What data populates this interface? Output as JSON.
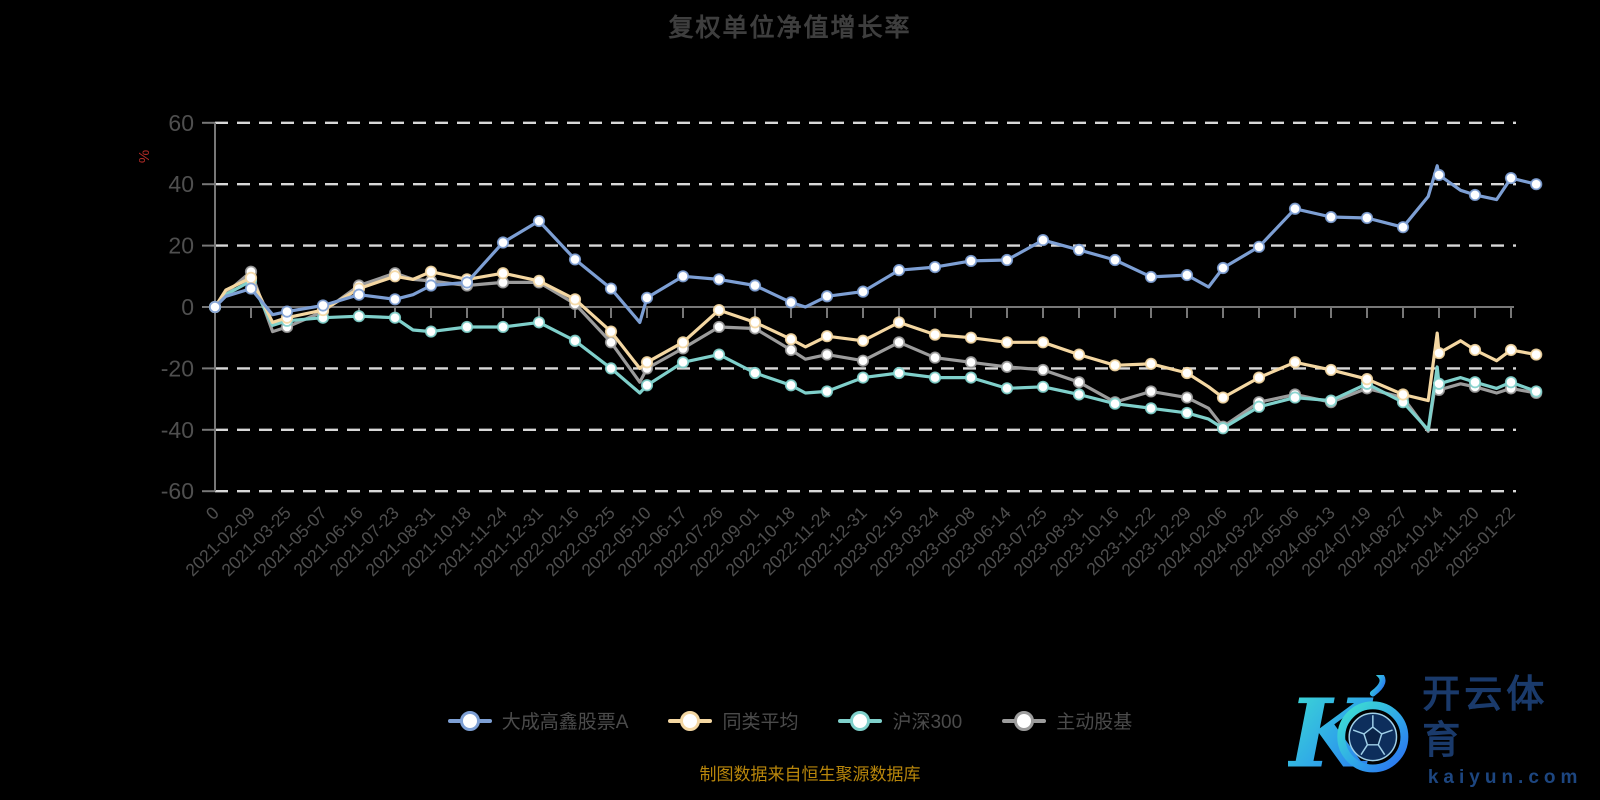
{
  "title": "复权单位净值增长率",
  "y_axis_unit": "%",
  "source_note": "制图数据来自恒生聚源数据库",
  "watermark": {
    "cn": "开云体育",
    "domain": "kaiyun.com"
  },
  "colors": {
    "background": "#000000",
    "title_text": "#3e3e3e",
    "axis_line": "#777777",
    "gridline": "#d8d8d8",
    "tick_label": "#4f4f4f",
    "unit_label_red": "#b32b27",
    "source_orange": "#b8860b",
    "watermark_navy": "#1a3a6b"
  },
  "chart_data": {
    "type": "line",
    "title": "复权单位净值增长率",
    "ylabel": "%",
    "ylim": [
      -60,
      60
    ],
    "yticks": [
      60,
      40,
      20,
      0,
      -20,
      -40,
      -60
    ],
    "grid": "horizontal dashed lines, solid zero axis",
    "legend_position": "bottom",
    "x_tick_labels": [
      "0",
      "2021-02-09",
      "2021-03-25",
      "2021-05-07",
      "2021-06-16",
      "2021-07-23",
      "2021-08-31",
      "2021-10-18",
      "2021-11-24",
      "2021-12-31",
      "2022-02-16",
      "2022-03-25",
      "2022-05-10",
      "2022-06-17",
      "2022-07-26",
      "2022-09-01",
      "2022-10-18",
      "2022-11-24",
      "2022-12-31",
      "2023-02-15",
      "2023-03-24",
      "2023-05-08",
      "2023-06-14",
      "2023-07-25",
      "2023-08-31",
      "2023-10-16",
      "2023-11-22",
      "2023-12-29",
      "2024-02-06",
      "2024-03-22",
      "2024-05-06",
      "2024-06-13",
      "2024-07-19",
      "2024-08-27",
      "2024-10-14",
      "2024-11-20",
      "2025-01-22"
    ],
    "x_units": "tick index (one unit per labeled date above; fractional values are intermediate dates)",
    "x": [
      0,
      0.3,
      1,
      1.6,
      2,
      3,
      4,
      5,
      5.5,
      6,
      7,
      8,
      9,
      10,
      11,
      11.8,
      12,
      13,
      14,
      15,
      16,
      16.4,
      17,
      18,
      19,
      20,
      21,
      22,
      23,
      24,
      25,
      26,
      27,
      27.6,
      28,
      29,
      30,
      31,
      32,
      33,
      33.7,
      33.95,
      34,
      34.6,
      35,
      35.6,
      36,
      36.7
    ],
    "series": [
      {
        "name": "大成高鑫股票A",
        "color": "#7d9fd4",
        "values": [
          0,
          3.5,
          6,
          -2.5,
          -1.5,
          0.5,
          4,
          2.5,
          4,
          7,
          8,
          21,
          28,
          15.5,
          6,
          -5,
          3,
          10,
          9,
          7,
          1.5,
          0,
          3.5,
          5,
          12,
          13,
          15,
          15.3,
          21.8,
          18.6,
          15.3,
          9.8,
          10.4,
          6.5,
          12.7,
          19.6,
          32,
          29.3,
          29,
          26,
          36,
          46,
          43,
          38,
          36.5,
          35,
          42,
          40
        ]
      },
      {
        "name": "同类平均",
        "color": "#f4d7a2",
        "values": [
          0,
          5.5,
          9.5,
          -5,
          -3.5,
          -1,
          6,
          10,
          9,
          11.5,
          9,
          11,
          8.5,
          2.5,
          -8,
          -20,
          -18,
          -11.5,
          -1,
          -5,
          -10.5,
          -13,
          -9.5,
          -11,
          -5,
          -9,
          -10,
          -11.5,
          -11.5,
          -15.5,
          -19,
          -18.5,
          -21.5,
          -26,
          -29.5,
          -23,
          -18,
          -20.5,
          -23.5,
          -28.5,
          -30.5,
          -8.5,
          -15,
          -11,
          -14,
          -17.5,
          -14,
          -15.5
        ]
      },
      {
        "name": "沪深300",
        "color": "#7fd0cb",
        "values": [
          0,
          4,
          8.5,
          -6,
          -4.5,
          -3.5,
          -3,
          -3.5,
          -7.5,
          -8,
          -6.5,
          -6.5,
          -5,
          -11,
          -20,
          -28,
          -25.5,
          -18,
          -15.5,
          -21.5,
          -25.5,
          -28,
          -27.5,
          -23,
          -21.5,
          -23,
          -23,
          -26.5,
          -26,
          -28.5,
          -31.5,
          -33,
          -34.5,
          -36.5,
          -39.5,
          -32.5,
          -29.5,
          -30.5,
          -25,
          -31,
          -40,
          -19.5,
          -25,
          -23,
          -24.5,
          -26.5,
          -24.5,
          -27.5
        ]
      },
      {
        "name": "主动股基",
        "color": "#9c9c9c",
        "values": [
          0,
          4.5,
          11.5,
          -8,
          -6.5,
          -1.5,
          7,
          11,
          9,
          8.5,
          7,
          8,
          8,
          1,
          -11.5,
          -24.5,
          -20,
          -13.5,
          -6.5,
          -7,
          -14,
          -17,
          -15.5,
          -17.5,
          -11.5,
          -16.5,
          -18,
          -19.5,
          -20.5,
          -24.5,
          -31,
          -27.5,
          -29.5,
          -33,
          -39,
          -31,
          -28.5,
          -31,
          -26.5,
          -29.5,
          -40.5,
          -21.5,
          -27,
          -25,
          -26,
          -28,
          -26.5,
          -28
        ]
      }
    ]
  }
}
